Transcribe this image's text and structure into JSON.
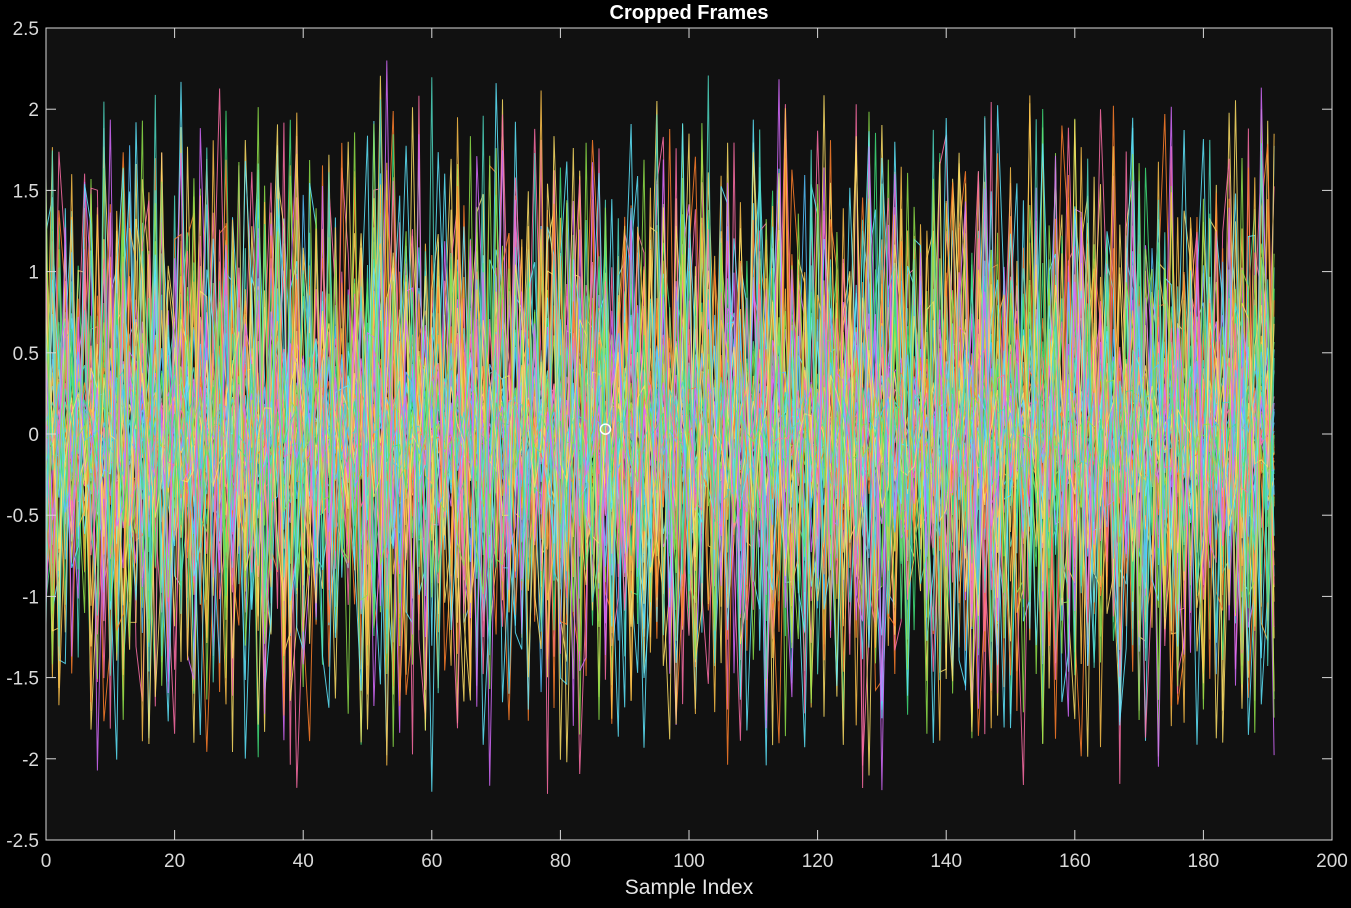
{
  "chart_data": {
    "type": "line",
    "title": "Cropped Frames",
    "xlabel": "Sample Index",
    "ylabel": "",
    "xlim": [
      0,
      200
    ],
    "ylim": [
      -2.5,
      2.5
    ],
    "xticks": [
      0,
      20,
      40,
      60,
      80,
      100,
      120,
      140,
      160,
      180,
      200
    ],
    "yticks": [
      -2.5,
      -2,
      -1.5,
      -1,
      -0.5,
      0,
      0.5,
      1,
      1.5,
      2,
      2.5
    ],
    "xtick_labels": [
      "0",
      "20",
      "40",
      "60",
      "80",
      "100",
      "120",
      "140",
      "160",
      "180",
      "200"
    ],
    "ytick_labels": [
      "-2.5",
      "-2",
      "-1.5",
      "-1",
      "-0.5",
      "0",
      "0.5",
      "1",
      "1.5",
      "2",
      "2.5"
    ],
    "grid": false,
    "legend": "none",
    "background": "#111111",
    "axis_color": "#d9d9d9",
    "series_colors": [
      "#ff7f2a",
      "#ffc24a",
      "#5ee8ff",
      "#3fe07a",
      "#55c1ff",
      "#ff6fa8",
      "#d66bff",
      "#ffe066",
      "#4dd9c2",
      "#8fe34a"
    ],
    "sample_range": [
      0,
      191
    ],
    "amplitude_peak": 2.2,
    "marker": {
      "x": 87,
      "y": 0.03,
      "color": "#ffffff"
    }
  }
}
